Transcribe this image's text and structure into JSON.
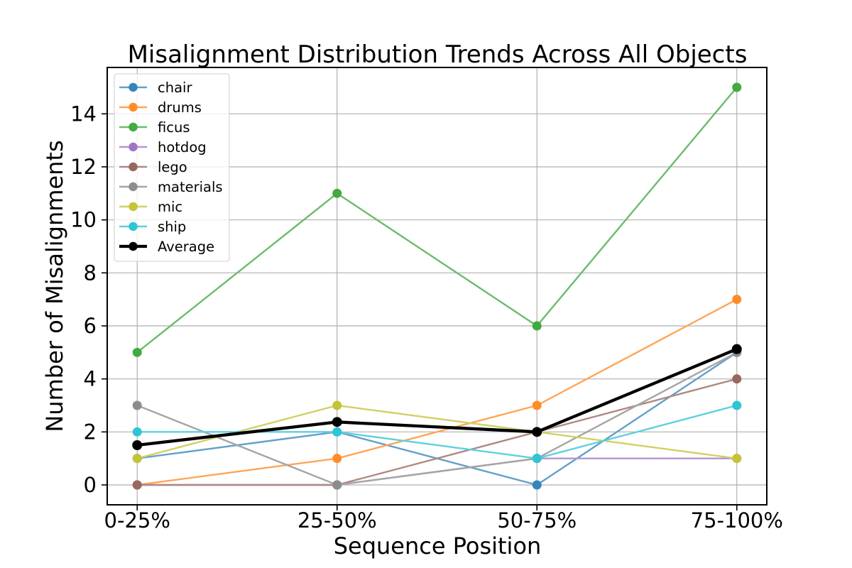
{
  "chart_data": {
    "type": "line",
    "title": "Misalignment Distribution Trends Across All Objects",
    "xlabel": "Sequence Position",
    "ylabel": "Number of Misalignments",
    "categories": [
      "0-25%",
      "25-50%",
      "50-75%",
      "75-100%"
    ],
    "series": [
      {
        "name": "chair",
        "line_color": "#62a0ca",
        "marker_color": "#3585bc",
        "values": [
          1,
          2,
          0,
          5
        ],
        "emphasis": false
      },
      {
        "name": "drums",
        "line_color": "#ffa556",
        "marker_color": "#ff8c26",
        "values": [
          0,
          1,
          3,
          7
        ],
        "emphasis": false
      },
      {
        "name": "ficus",
        "line_color": "#6bbc6b",
        "marker_color": "#41aa41",
        "values": [
          5,
          11,
          6,
          15
        ],
        "emphasis": false
      },
      {
        "name": "hotdog",
        "line_color": "#b495d1",
        "marker_color": "#9f76c4",
        "values": [
          0,
          0,
          1,
          1
        ],
        "emphasis": false
      },
      {
        "name": "lego",
        "line_color": "#ae8981",
        "marker_color": "#98675d",
        "values": [
          0,
          0,
          2,
          4
        ],
        "emphasis": false
      },
      {
        "name": "materials",
        "line_color": "#a5a5a5",
        "marker_color": "#8c8c8c",
        "values": [
          3,
          0,
          1,
          5
        ],
        "emphasis": false
      },
      {
        "name": "mic",
        "line_color": "#d0d164",
        "marker_color": "#c3c438",
        "values": [
          1,
          3,
          2,
          1
        ],
        "emphasis": false
      },
      {
        "name": "ship",
        "line_color": "#5dd1dd",
        "marker_color": "#2ec5d4",
        "values": [
          2,
          2,
          1,
          3
        ],
        "emphasis": false
      },
      {
        "name": "Average",
        "line_color": "#000000",
        "marker_color": "#000000",
        "values": [
          1.5,
          2.375,
          2.0,
          5.125
        ],
        "emphasis": true
      }
    ],
    "yticks": [
      0,
      2,
      4,
      6,
      8,
      10,
      12,
      14
    ],
    "ylim": [
      -0.75,
      15.75
    ],
    "xlim": [
      -0.15,
      3.15
    ],
    "grid": true,
    "grid_color": "#b0b0b0",
    "axis_color": "#000000",
    "legend": {
      "position": "upper left",
      "background": "rgba(255,255,255,0.8)",
      "border_color": "#cccccc"
    }
  }
}
